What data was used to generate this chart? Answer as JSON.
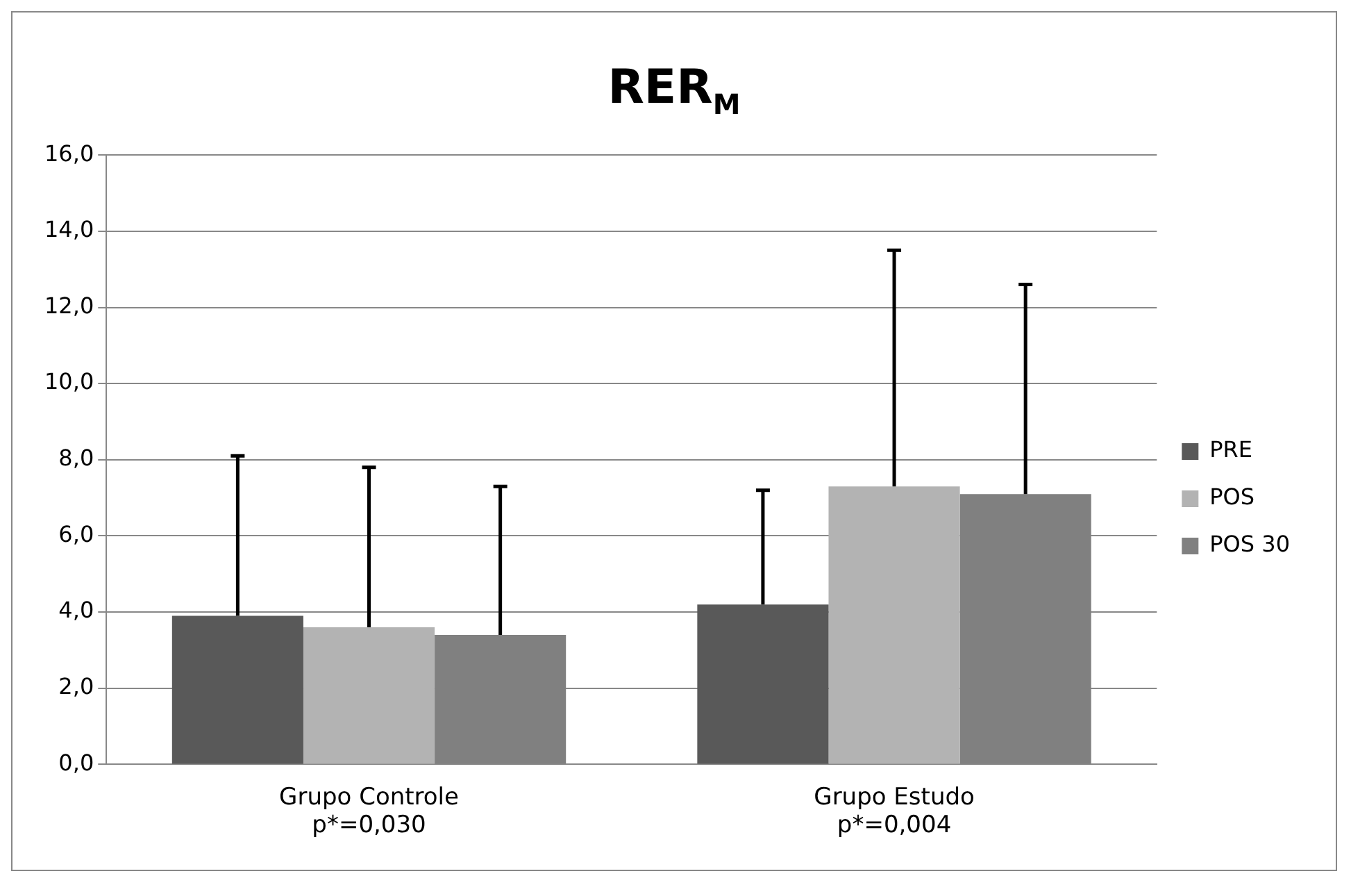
{
  "chart_data": {
    "type": "bar",
    "title": "RER$_{M}$",
    "categories": [
      "Grupo Controle\np*=0,030",
      "Grupo Estudo\np*=0,004"
    ],
    "series": [
      {
        "name": "PRE",
        "color": "#595959",
        "values": [
          3.9,
          4.2
        ],
        "errors": [
          [
            3.9,
            8.1
          ],
          [
            4.2,
            7.2
          ]
        ]
      },
      {
        "name": "POS",
        "color": "#b3b3b3",
        "values": [
          3.6,
          7.3
        ],
        "errors": [
          [
            3.6,
            7.8
          ],
          [
            7.3,
            13.5
          ]
        ]
      },
      {
        "name": "POS 30",
        "color": "#808080",
        "values": [
          3.4,
          7.1
        ],
        "errors": [
          [
            3.4,
            7.3
          ],
          [
            7.1,
            12.6
          ]
        ]
      }
    ],
    "ylim": [
      0,
      16
    ],
    "yticks": [
      {
        "value": 0,
        "label": "0,0"
      },
      {
        "value": 2,
        "label": "2,0"
      },
      {
        "value": 4,
        "label": "4,0"
      },
      {
        "value": 6,
        "label": "6,0"
      },
      {
        "value": 8,
        "label": "8,0"
      },
      {
        "value": 10,
        "label": "10,0"
      },
      {
        "value": 12,
        "label": "12,0"
      },
      {
        "value": 14,
        "label": "14,0"
      },
      {
        "value": 16,
        "label": "16,0"
      }
    ],
    "grid": "y",
    "legend": "right"
  }
}
